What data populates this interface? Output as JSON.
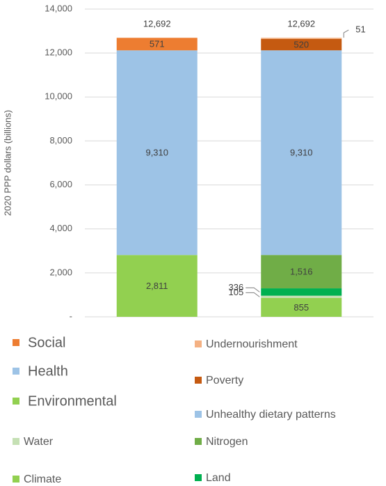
{
  "chart_data": {
    "type": "stacked_bar",
    "y_label": "2020 PPP dollars (billions)",
    "categories": [
      null,
      null
    ],
    "series": [
      {
        "name": "Environmental",
        "color": "#92d050",
        "values": [
          2811,
          null
        ],
        "value_labels": [
          "2,811",
          null
        ]
      },
      {
        "name": "Climate",
        "color": "#92d050",
        "values": [
          null,
          855
        ],
        "value_labels": [
          null,
          "855"
        ]
      },
      {
        "name": "Water",
        "color": "#c5e0b4",
        "values": [
          null,
          105
        ],
        "value_labels": [
          null,
          "105"
        ]
      },
      {
        "name": "Land",
        "color": "#00b050",
        "values": [
          null,
          336
        ],
        "value_labels": [
          null,
          "336"
        ]
      },
      {
        "name": "Nitrogen",
        "color": "#70ad47",
        "values": [
          null,
          1516
        ],
        "value_labels": [
          null,
          "1,516"
        ]
      },
      {
        "name": "Health",
        "color": "#9dc3e6",
        "values": [
          9310,
          null
        ],
        "value_labels": [
          "9,310",
          null
        ]
      },
      {
        "name": "Unhealthy dietary patterns",
        "color": "#9dc3e6",
        "values": [
          null,
          9310
        ],
        "value_labels": [
          null,
          "9,310"
        ]
      },
      {
        "name": "Social",
        "color": "#ed7d31",
        "values": [
          571,
          null
        ],
        "value_labels": [
          "571",
          null
        ]
      },
      {
        "name": "Poverty",
        "color": "#c55a11",
        "values": [
          null,
          520
        ],
        "value_labels": [
          null,
          "520"
        ]
      },
      {
        "name": "Undernourishment",
        "color": "#f4b183",
        "values": [
          null,
          51
        ],
        "value_labels": [
          null,
          "51"
        ]
      }
    ],
    "totals": [
      12692,
      12692
    ],
    "total_labels": [
      "12,692",
      "12,692"
    ],
    "ylim": [
      0,
      14000
    ],
    "yticks": [
      {
        "value": 0,
        "label": "-"
      },
      {
        "value": 2000,
        "label": "2,000"
      },
      {
        "value": 4000,
        "label": "4,000"
      },
      {
        "value": 6000,
        "label": "6,000"
      },
      {
        "value": 8000,
        "label": "8,000"
      },
      {
        "value": 10000,
        "label": "10,000"
      },
      {
        "value": 12000,
        "label": "12,000"
      },
      {
        "value": 14000,
        "label": "14,000"
      }
    ],
    "grid": true,
    "legend": "bottom"
  }
}
